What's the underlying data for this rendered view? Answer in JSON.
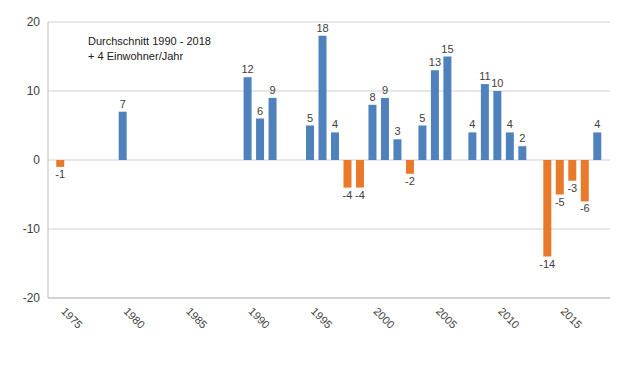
{
  "chart_data": {
    "type": "bar",
    "annotations": [
      "Durchschnitt 1990 - 2018",
      "+ 4 Einwohner/Jahr"
    ],
    "x": [
      1975,
      1980,
      1990,
      1991,
      1992,
      1993,
      1994,
      1995,
      1996,
      1997,
      1998,
      1999,
      2000,
      2001,
      2002,
      2003,
      2004,
      2005,
      2006,
      2007,
      2008,
      2009,
      2010,
      2011,
      2012,
      2013,
      2014,
      2015,
      2016,
      2017,
      2018
    ],
    "values": [
      -1,
      7,
      12,
      6,
      9,
      0,
      0,
      5,
      18,
      4,
      -4,
      -4,
      8,
      9,
      3,
      -2,
      5,
      13,
      15,
      0,
      4,
      11,
      10,
      4,
      2,
      0,
      -14,
      -5,
      -3,
      -6,
      4
    ],
    "colors": [
      "#e97a2b",
      "#4f81bd",
      "#4f81bd",
      "#4f81bd",
      "#4f81bd",
      "#4f81bd",
      "#4f81bd",
      "#4f81bd",
      "#4f81bd",
      "#4f81bd",
      "#e97a2b",
      "#e97a2b",
      "#4f81bd",
      "#4f81bd",
      "#4f81bd",
      "#e97a2b",
      "#4f81bd",
      "#4f81bd",
      "#4f81bd",
      "#4f81bd",
      "#4f81bd",
      "#4f81bd",
      "#4f81bd",
      "#4f81bd",
      "#4f81bd",
      "#4f81bd",
      "#e97a2b",
      "#e97a2b",
      "#e97a2b",
      "#e97a2b",
      "#4f81bd"
    ],
    "xlim": [
      1974,
      2019
    ],
    "xticks": [
      1975,
      1980,
      1985,
      1990,
      1995,
      2000,
      2005,
      2010,
      2015
    ],
    "ylim": [
      -20,
      20
    ],
    "yticks": [
      -20,
      -10,
      0,
      10,
      20
    ],
    "grid": true,
    "data_labels": true
  }
}
